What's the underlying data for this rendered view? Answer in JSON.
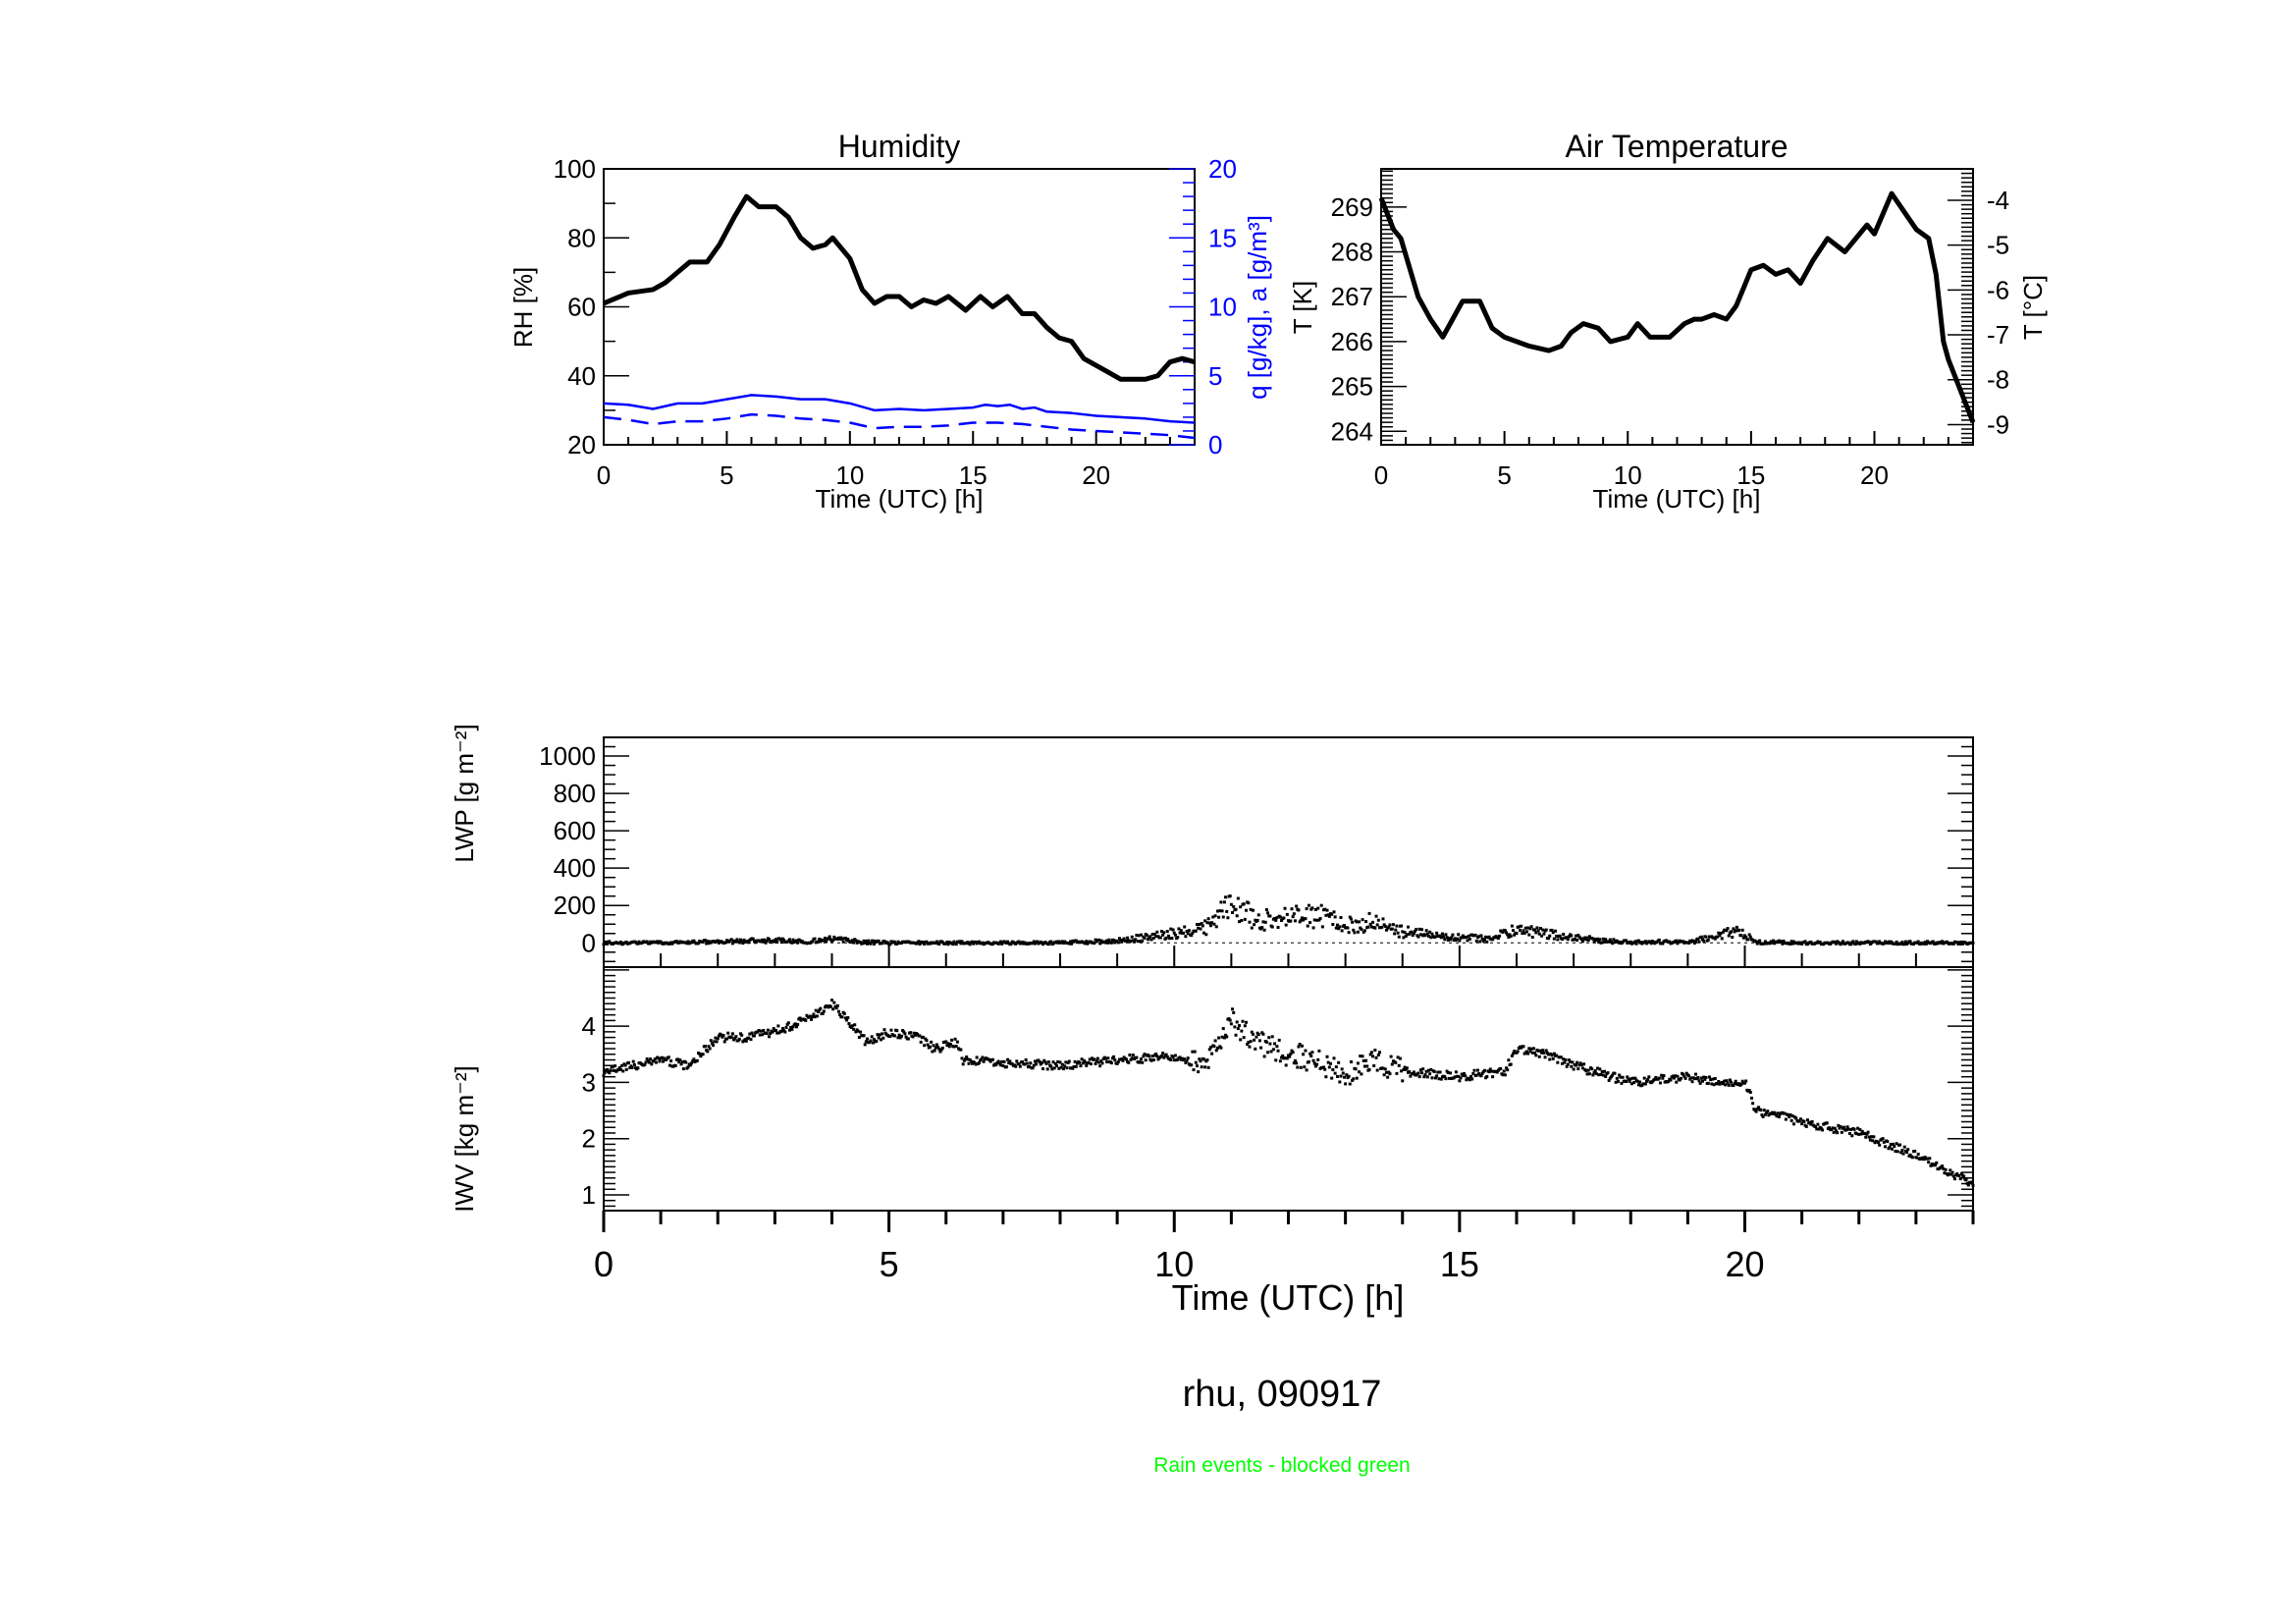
{
  "colors": {
    "primary": "#000000",
    "secondary_axis": "#0000ff",
    "note": "#00ff00"
  },
  "figure_title": "rhu, 090917",
  "note": "Rain events - blocked green",
  "chart_data": [
    {
      "type": "line",
      "title": "Humidity",
      "xlabel": "Time (UTC) [h]",
      "ylabel": "RH [%]",
      "ylabel_right": "q [g/kg], a [g/m³]",
      "xlim": [
        0,
        24
      ],
      "ylim": [
        20,
        100
      ],
      "ylim_right": [
        0,
        20
      ],
      "xticks": [
        "0",
        "5",
        "10",
        "15",
        "20"
      ],
      "yticks": [
        "20",
        "40",
        "60",
        "80",
        "100"
      ],
      "yticks_right": [
        "0",
        "5",
        "10",
        "15",
        "20"
      ],
      "series": [
        {
          "axis": "left",
          "style": "solid",
          "color": "#000000",
          "x": [
            0,
            1,
            2,
            2.5,
            3,
            3.5,
            4.2,
            4.7,
            5.3,
            5.8,
            6.3,
            7,
            7.5,
            8,
            8.5,
            9,
            9.3,
            10,
            10.5,
            11,
            11.5,
            12,
            12.5,
            13,
            13.5,
            14,
            14.7,
            15.3,
            15.8,
            16.4,
            17,
            17.5,
            18,
            18.5,
            19,
            19.5,
            20,
            20.5,
            21,
            21.5,
            22,
            22.5,
            23,
            23.5,
            24
          ],
          "y": [
            61,
            64,
            65,
            67,
            70,
            73,
            73,
            78,
            86,
            92,
            89,
            89,
            86,
            80,
            77,
            78,
            80,
            74,
            65,
            61,
            63,
            63,
            60,
            62,
            61,
            63,
            59,
            63,
            60,
            63,
            58,
            58,
            54,
            51,
            50,
            45,
            43,
            41,
            39,
            39,
            39,
            40,
            44,
            45,
            44
          ]
        },
        {
          "axis": "right",
          "style": "solid",
          "color": "#0000ff",
          "x": [
            0,
            1,
            2,
            3,
            4,
            5,
            6,
            7,
            8,
            9,
            10,
            11,
            12,
            13,
            14,
            15,
            15.5,
            16,
            16.5,
            17,
            17.5,
            18,
            19,
            20,
            21,
            22,
            23,
            24
          ],
          "y": [
            3.0,
            2.9,
            2.6,
            3.0,
            3.0,
            3.3,
            3.6,
            3.5,
            3.3,
            3.3,
            3.0,
            2.5,
            2.6,
            2.5,
            2.6,
            2.7,
            2.9,
            2.8,
            2.9,
            2.6,
            2.7,
            2.4,
            2.3,
            2.1,
            2.0,
            1.9,
            1.7,
            1.6
          ]
        },
        {
          "axis": "right",
          "style": "dashed",
          "color": "#0000ff",
          "x": [
            0,
            1,
            2,
            3,
            4,
            5,
            6,
            7,
            8,
            9,
            10,
            11,
            12,
            13,
            14,
            15,
            16,
            17,
            18,
            19,
            20,
            21,
            22,
            23,
            24
          ],
          "y": [
            2.0,
            1.8,
            1.5,
            1.7,
            1.7,
            1.9,
            2.2,
            2.1,
            1.9,
            1.8,
            1.6,
            1.2,
            1.3,
            1.3,
            1.4,
            1.6,
            1.6,
            1.5,
            1.3,
            1.1,
            1.0,
            0.9,
            0.8,
            0.7,
            0.5
          ]
        }
      ]
    },
    {
      "type": "line",
      "title": "Air Temperature",
      "xlabel": "Time (UTC) [h]",
      "ylabel": "T [K]",
      "ylabel_right": "T [°C]",
      "xlim": [
        0,
        24
      ],
      "ylim": [
        263.7,
        269.85
      ],
      "ylim_right": [
        -9.45,
        -3.3
      ],
      "xticks": [
        "0",
        "5",
        "10",
        "15",
        "20"
      ],
      "yticks": [
        "264",
        "265",
        "266",
        "267",
        "268",
        "269"
      ],
      "yticks_right": [
        "-9",
        "-8",
        "-7",
        "-6",
        "-5",
        "-4"
      ],
      "series": [
        {
          "axis": "left",
          "style": "solid",
          "color": "#000000",
          "x": [
            0,
            0.5,
            0.8,
            1.5,
            2,
            2.5,
            3,
            3.3,
            4,
            4.5,
            5,
            6,
            6.8,
            7.3,
            7.7,
            8.2,
            8.8,
            9.3,
            10,
            10.4,
            10.9,
            11.7,
            12.3,
            12.7,
            13,
            13.5,
            14,
            14.4,
            15,
            15.5,
            16,
            16.5,
            17,
            17.5,
            18.1,
            18.8,
            19.4,
            19.7,
            20,
            20.7,
            21.2,
            21.7,
            22.2,
            22.5,
            22.8,
            23,
            23.5,
            24
          ],
          "y": [
            269.2,
            268.5,
            268.3,
            267.0,
            266.5,
            266.1,
            266.6,
            266.9,
            266.9,
            266.3,
            266.1,
            265.9,
            265.8,
            265.9,
            266.2,
            266.4,
            266.3,
            266.0,
            266.1,
            266.4,
            266.1,
            266.1,
            266.4,
            266.5,
            266.5,
            266.6,
            266.5,
            266.8,
            267.6,
            267.7,
            267.5,
            267.6,
            267.3,
            267.8,
            268.3,
            268.0,
            268.4,
            268.6,
            268.4,
            269.3,
            268.9,
            268.5,
            268.3,
            267.5,
            266.0,
            265.6,
            264.9,
            264.2
          ]
        }
      ]
    },
    {
      "type": "scatter",
      "title": "",
      "xlabel": "",
      "ylabel": "LWP [g m⁻²]",
      "xlim": [
        0,
        24
      ],
      "ylim": [
        -130,
        1100
      ],
      "yticks": [
        "0",
        "200",
        "400",
        "600",
        "800",
        "1000"
      ],
      "x": [
        0,
        1,
        2,
        3,
        3.5,
        4,
        4.5,
        5,
        6,
        7,
        8,
        9,
        9.5,
        10,
        10.5,
        10.8,
        11,
        11.5,
        12,
        12.5,
        13,
        13.5,
        14,
        14.5,
        15,
        15.5,
        16,
        16.5,
        17,
        17.5,
        18,
        19,
        19.5,
        19.8,
        20,
        20.2,
        21,
        22,
        23,
        24
      ],
      "y": [
        0,
        0,
        5,
        15,
        5,
        20,
        5,
        0,
        0,
        0,
        0,
        10,
        30,
        50,
        70,
        150,
        200,
        120,
        130,
        150,
        90,
        110,
        60,
        40,
        30,
        20,
        70,
        50,
        30,
        10,
        5,
        5,
        30,
        60,
        40,
        5,
        0,
        0,
        0,
        0
      ]
    },
    {
      "type": "scatter",
      "title": "",
      "xlabel": "Time (UTC) [h]",
      "ylabel": "IWV [kg m⁻²]",
      "xlim": [
        0,
        24
      ],
      "ylim": [
        0.72,
        5.05
      ],
      "xticks": [
        "0",
        "5",
        "10",
        "15",
        "20"
      ],
      "yticks": [
        "1",
        "2",
        "3",
        "4"
      ],
      "x": [
        0,
        0.5,
        1,
        1.5,
        2,
        2.5,
        3,
        3.5,
        4,
        4.3,
        4.6,
        5,
        5.5,
        5.8,
        6.2,
        6.3,
        7,
        8,
        9,
        10,
        10.5,
        11,
        11.5,
        12,
        12.5,
        13,
        13.5,
        14,
        15,
        15.8,
        16,
        16.5,
        17,
        18,
        19,
        19.5,
        20,
        20.2,
        21,
        22,
        23,
        24
      ],
      "y": [
        3.2,
        3.3,
        3.4,
        3.3,
        3.8,
        3.8,
        3.9,
        4.1,
        4.4,
        4.1,
        3.7,
        3.9,
        3.8,
        3.6,
        3.7,
        3.4,
        3.35,
        3.3,
        3.4,
        3.45,
        3.3,
        4.1,
        3.7,
        3.5,
        3.4,
        3.1,
        3.4,
        3.2,
        3.1,
        3.2,
        3.6,
        3.5,
        3.3,
        3.0,
        3.1,
        3.0,
        3.0,
        2.5,
        2.3,
        2.1,
        1.7,
        1.2
      ]
    }
  ]
}
